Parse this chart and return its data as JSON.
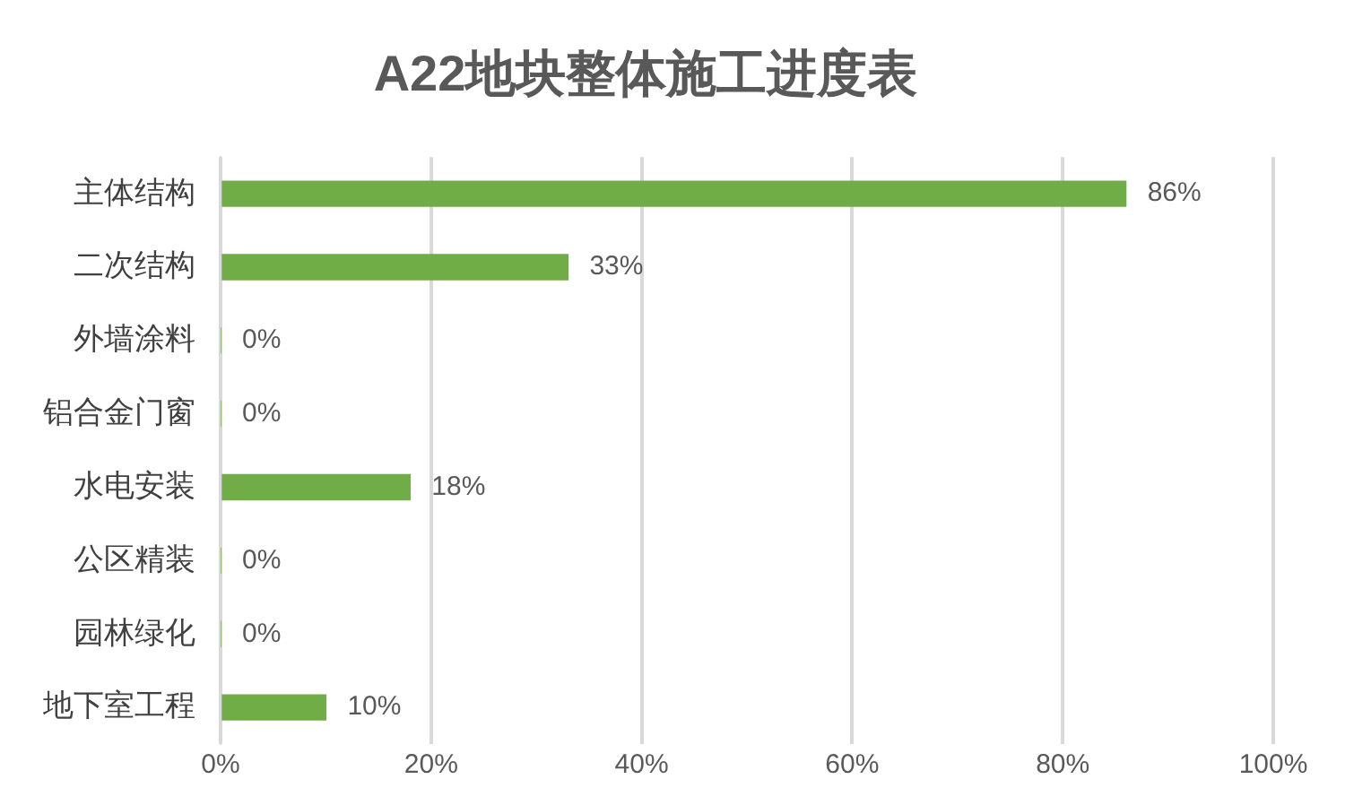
{
  "chart_data": {
    "type": "bar",
    "orientation": "horizontal",
    "title": "A22地块整体施工进度表",
    "categories": [
      "主体结构",
      "二次结构",
      "外墙涂料",
      "铝合金门窗",
      "水电安装",
      "公区精装",
      "园林绿化",
      "地下室工程"
    ],
    "values": [
      86,
      33,
      0,
      0,
      18,
      0,
      0,
      10
    ],
    "value_labels": [
      "86%",
      "33%",
      "0%",
      "0%",
      "18%",
      "0%",
      "0%",
      "10%"
    ],
    "color": "#70ad47",
    "xlim": [
      0,
      100
    ],
    "xticks": [
      {
        "value": 0,
        "label": "0%"
      },
      {
        "value": 20,
        "label": "20%"
      },
      {
        "value": 40,
        "label": "40%"
      },
      {
        "value": 60,
        "label": "60%"
      },
      {
        "value": 80,
        "label": "80%"
      },
      {
        "value": 100,
        "label": "100%"
      }
    ],
    "grid": "x",
    "legend": false
  }
}
